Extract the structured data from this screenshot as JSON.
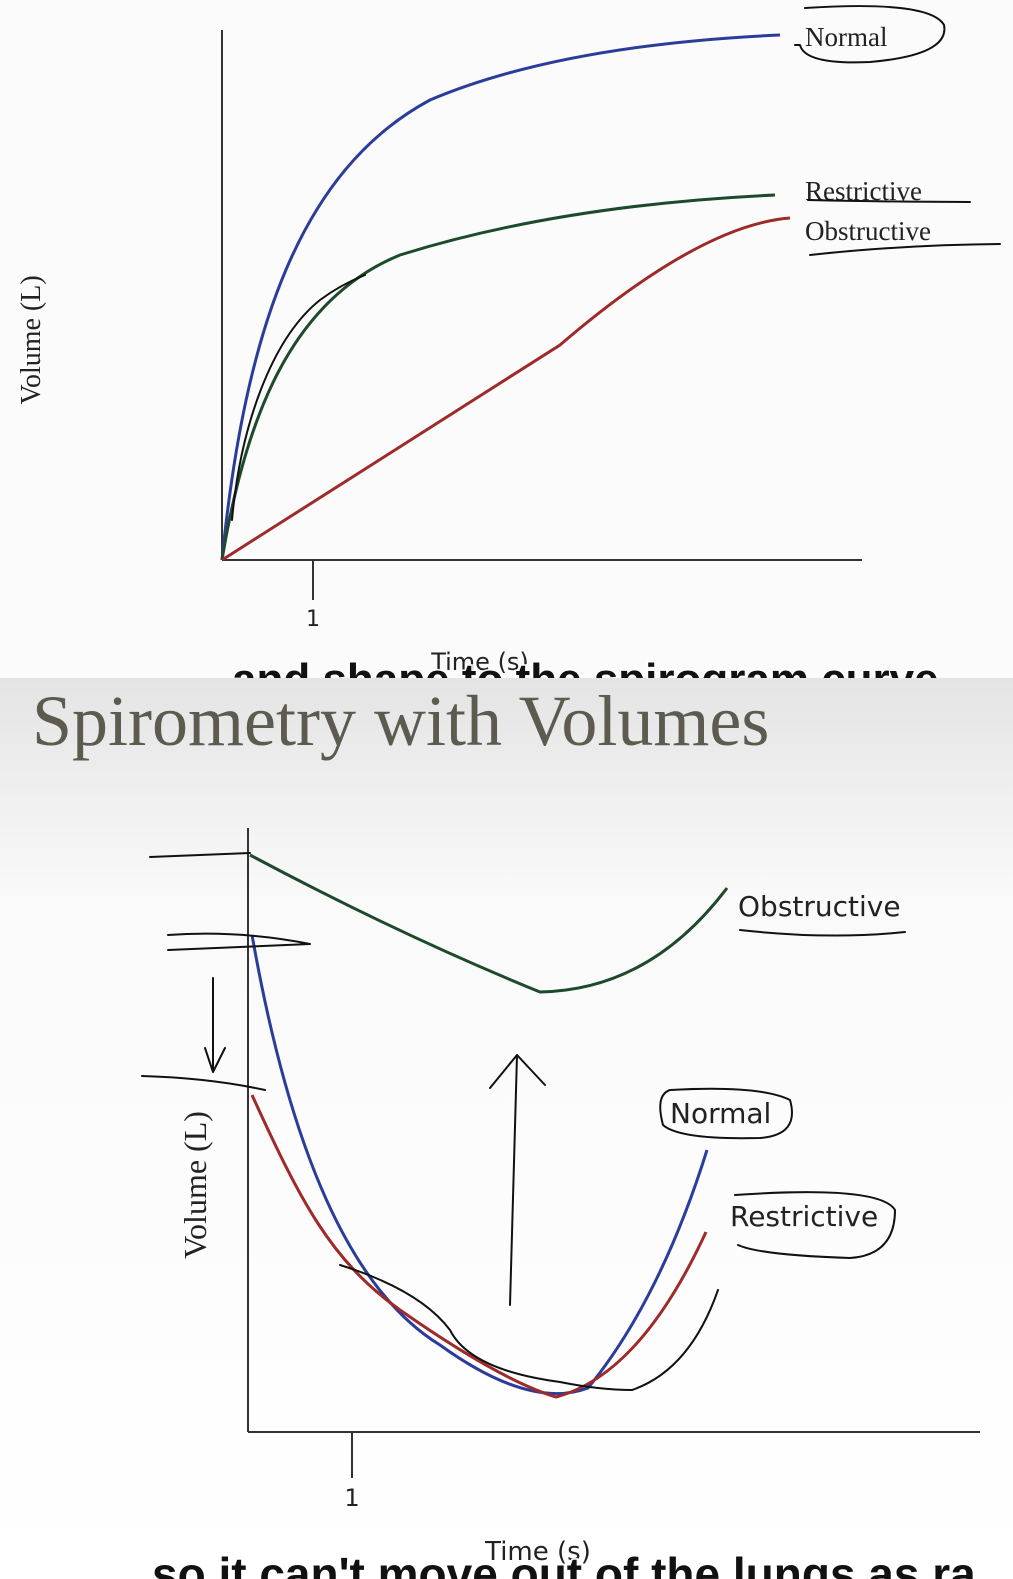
{
  "top_panel": {
    "y_axis_label": "Volume (L)",
    "x_tick": "1",
    "x_axis_label": "Time (s)",
    "labels": {
      "normal": "Normal",
      "restrictive": "Restrictive",
      "obstructive": "Obstructive"
    },
    "caption": "and shape to the spirogram curve"
  },
  "bottom_panel": {
    "title": "Spirometry with Volumes",
    "y_axis_label": "Volume (L)",
    "x_tick": "1",
    "x_axis_label": "Time (s)",
    "labels": {
      "obstructive": "Obstructive",
      "normal": "Normal",
      "restrictive": "Restrictive"
    },
    "caption": "so it can't move out of the lungs as ra"
  }
}
